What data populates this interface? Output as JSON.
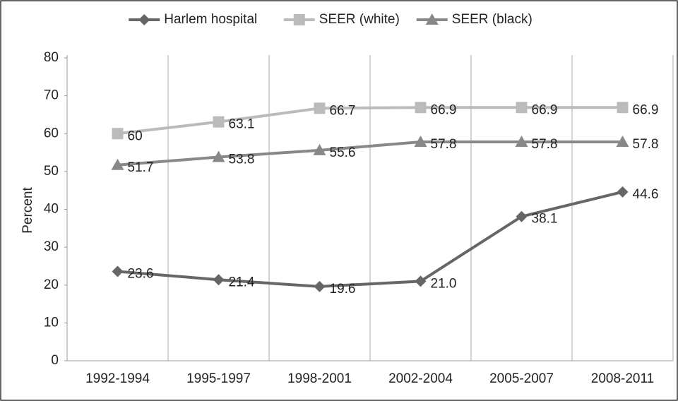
{
  "chart_data": {
    "type": "line",
    "y_label": "Percent",
    "categories": [
      "1992-1994",
      "1995-1997",
      "1998-2001",
      "2002-2004",
      "2005-2007",
      "2008-2011"
    ],
    "series": [
      {
        "name": "Harlem hospital",
        "color": "#666666",
        "marker": "diamond",
        "values": [
          23.6,
          21.4,
          19.6,
          21.0,
          38.1,
          44.6
        ],
        "value_labels": [
          "23.6",
          "21.4",
          "19.6",
          "21.0",
          "38.1",
          "44.6"
        ]
      },
      {
        "name": "SEER (white)",
        "color": "#bbbbbb",
        "marker": "square",
        "values": [
          60,
          63.1,
          66.7,
          66.9,
          66.9,
          66.9
        ]
      },
      {
        "name": "SEER (black)",
        "color": "#888888",
        "marker": "triangle",
        "values": [
          51.7,
          53.8,
          55.6,
          57.8,
          57.8,
          57.8
        ]
      }
    ],
    "ylim": [
      0,
      80
    ],
    "yticks": [
      0,
      10,
      20,
      30,
      40,
      50,
      60,
      70,
      80
    ],
    "grid": true,
    "legend": "top"
  }
}
